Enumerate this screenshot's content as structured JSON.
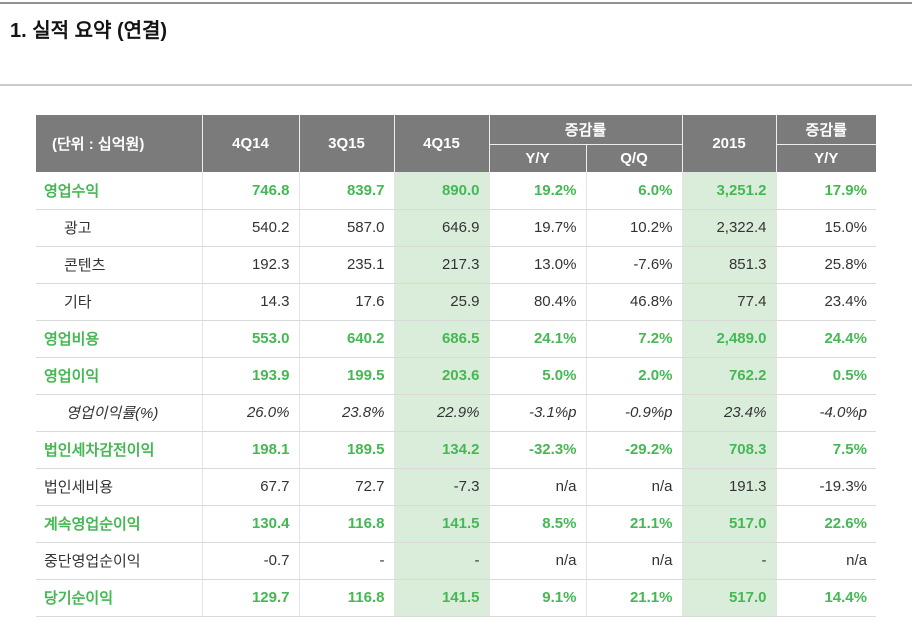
{
  "page": {
    "title": "1. 실적 요약 (연결)"
  },
  "table": {
    "unit_label": "(단위 : 십억원)",
    "header": {
      "periods": [
        "4Q14",
        "3Q15",
        "4Q15"
      ],
      "change_group_label": "증감률",
      "change_cols": [
        "Y/Y",
        "Q/Q"
      ],
      "year_label": "2015",
      "year_change_group_label": "증감률",
      "year_change_col": "Y/Y"
    },
    "rows": [
      {
        "label": "영업수익",
        "style": "green",
        "values": [
          "746.8",
          "839.7",
          "890.0",
          "19.2%",
          "6.0%",
          "3,251.2",
          "17.9%"
        ]
      },
      {
        "label": "광고",
        "style": "sub",
        "values": [
          "540.2",
          "587.0",
          "646.9",
          "19.7%",
          "10.2%",
          "2,322.4",
          "15.0%"
        ]
      },
      {
        "label": "콘텐츠",
        "style": "sub",
        "values": [
          "192.3",
          "235.1",
          "217.3",
          "13.0%",
          "-7.6%",
          "851.3",
          "25.8%"
        ]
      },
      {
        "label": "기타",
        "style": "sub",
        "values": [
          "14.3",
          "17.6",
          "25.9",
          "80.4%",
          "46.8%",
          "77.4",
          "23.4%"
        ]
      },
      {
        "label": "영업비용",
        "style": "green",
        "values": [
          "553.0",
          "640.2",
          "686.5",
          "24.1%",
          "7.2%",
          "2,489.0",
          "24.4%"
        ]
      },
      {
        "label": "영업이익",
        "style": "green",
        "values": [
          "193.9",
          "199.5",
          "203.6",
          "5.0%",
          "2.0%",
          "762.2",
          "0.5%"
        ]
      },
      {
        "label": "영업이익률(%)",
        "style": "italic",
        "values": [
          "26.0%",
          "23.8%",
          "22.9%",
          "-3.1%p",
          "-0.9%p",
          "23.4%",
          "-4.0%p"
        ]
      },
      {
        "label": "법인세차감전이익",
        "style": "green",
        "values": [
          "198.1",
          "189.5",
          "134.2",
          "-32.3%",
          "-29.2%",
          "708.3",
          "7.5%"
        ]
      },
      {
        "label": "법인세비용",
        "style": "plain",
        "values": [
          "67.7",
          "72.7",
          "-7.3",
          "n/a",
          "n/a",
          "191.3",
          "-19.3%"
        ]
      },
      {
        "label": "계속영업순이익",
        "style": "green",
        "values": [
          "130.4",
          "116.8",
          "141.5",
          "8.5%",
          "21.1%",
          "517.0",
          "22.6%"
        ]
      },
      {
        "label": "중단영업순이익",
        "style": "plain",
        "values": [
          "-0.7",
          "-",
          "-",
          "n/a",
          "n/a",
          "-",
          "n/a"
        ]
      },
      {
        "label": "당기순이익",
        "style": "green",
        "values": [
          "129.7",
          "116.8",
          "141.5",
          "9.1%",
          "21.1%",
          "517.0",
          "14.4%"
        ]
      }
    ],
    "highlight_columns": [
      2,
      5
    ],
    "colors": {
      "accent_green": "#45b854",
      "highlight_bg": "#daeddb",
      "header_bg": "#7b7b7b",
      "header_text": "#ffffff",
      "body_text": "#333333"
    }
  }
}
